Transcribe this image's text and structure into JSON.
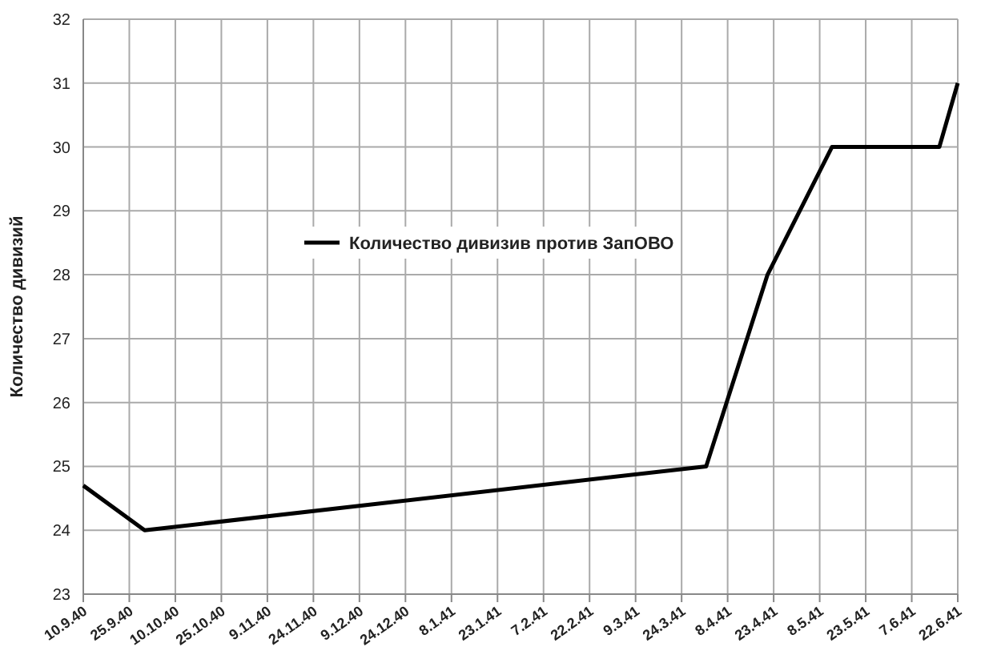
{
  "chart_data": {
    "type": "line",
    "ylabel": "Количество дивизий",
    "xlim": [
      "1940-09-10",
      "1941-06-22"
    ],
    "xticks": [
      {
        "value": "1940-09-10",
        "label": "10.9.40"
      },
      {
        "value": "1940-09-25",
        "label": "25.9.40"
      },
      {
        "value": "1940-10-10",
        "label": "10.10.40"
      },
      {
        "value": "1940-10-25",
        "label": "25.10.40"
      },
      {
        "value": "1940-11-09",
        "label": "9.11.40"
      },
      {
        "value": "1940-11-24",
        "label": "24.11.40"
      },
      {
        "value": "1940-12-09",
        "label": "9.12.40"
      },
      {
        "value": "1940-12-24",
        "label": "24.12.40"
      },
      {
        "value": "1941-01-08",
        "label": "8.1.41"
      },
      {
        "value": "1941-01-23",
        "label": "23.1.41"
      },
      {
        "value": "1941-02-07",
        "label": "7.2.41"
      },
      {
        "value": "1941-02-22",
        "label": "22.2.41"
      },
      {
        "value": "1941-03-09",
        "label": "9.3.41"
      },
      {
        "value": "1941-03-24",
        "label": "24.3.41"
      },
      {
        "value": "1941-04-08",
        "label": "8.4.41"
      },
      {
        "value": "1941-04-23",
        "label": "23.4.41"
      },
      {
        "value": "1941-05-08",
        "label": "8.5.41"
      },
      {
        "value": "1941-05-23",
        "label": "23.5.41"
      },
      {
        "value": "1941-06-07",
        "label": "7.6.41"
      },
      {
        "value": "1941-06-22",
        "label": "22.6.41"
      }
    ],
    "ylim": [
      23,
      32
    ],
    "yticks": [
      23,
      24,
      25,
      26,
      27,
      28,
      29,
      30,
      31,
      32
    ],
    "grid": true,
    "legend": "left",
    "marker": "none",
    "line_style": "solid",
    "x": [
      "1940-09-10",
      "1940-09-30",
      "1941-04-01",
      "1941-04-21",
      "1941-05-12",
      "1941-06-16",
      "1941-06-22"
    ],
    "series": [
      {
        "name": "Количество дивизив против ЗапОВО",
        "color": "#000000",
        "values": [
          24.7,
          24,
          25,
          28,
          30,
          30,
          31
        ]
      }
    ]
  }
}
